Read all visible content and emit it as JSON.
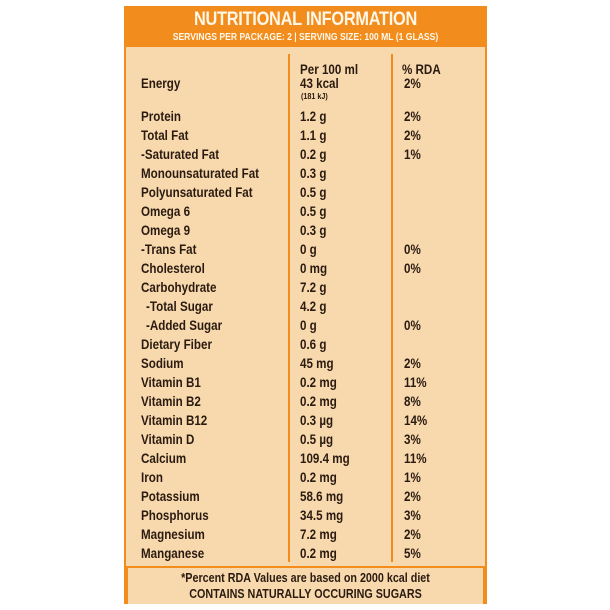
{
  "header": {
    "title": "NUTRITIONAL INFORMATION",
    "subtitle": "SERVINGS PER PACKAGE: 2 | SERVING SIZE: 100 ML (1 GLASS)"
  },
  "columns": {
    "per": "Per 100 ml",
    "rda": "% RDA"
  },
  "rows": [
    {
      "name": "Energy",
      "per": "43 kcal",
      "sub": "(181 kJ)",
      "rda": "2%"
    },
    {
      "name": "Protein",
      "per": "1.2 g",
      "rda": "2%"
    },
    {
      "name": "Total Fat",
      "per": "1.1 g",
      "rda": "2%"
    },
    {
      "name": "-Saturated Fat",
      "per": "0.2 g",
      "rda": "1%"
    },
    {
      "name": "Monounsaturated Fat",
      "per": "0.3 g",
      "rda": ""
    },
    {
      "name": "Polyunsaturated Fat",
      "per": "0.5 g",
      "rda": ""
    },
    {
      "name": "Omega 6",
      "per": "0.5 g",
      "rda": ""
    },
    {
      "name": "Omega 9",
      "per": "0.3 g",
      "rda": ""
    },
    {
      "name": "-Trans Fat",
      "per": "0 g",
      "rda": "0%"
    },
    {
      "name": "Cholesterol",
      "per": "0 mg",
      "rda": "0%"
    },
    {
      "name": "Carbohydrate",
      "per": "7.2 g",
      "rda": ""
    },
    {
      "name": "-Total Sugar",
      "per": "4.2 g",
      "rda": ""
    },
    {
      "name": "-Added Sugar",
      "per": "0 g",
      "rda": "0%"
    },
    {
      "name": "Dietary Fiber",
      "per": "0.6 g",
      "rda": ""
    },
    {
      "name": "Sodium",
      "per": "45 mg",
      "rda": "2%"
    },
    {
      "name": "Vitamin B1",
      "per": "0.2 mg",
      "rda": "11%"
    },
    {
      "name": "Vitamin B2",
      "per": "0.2 mg",
      "rda": "8%"
    },
    {
      "name": "Vitamin B12",
      "per": "0.3 µg",
      "rda": "14%"
    },
    {
      "name": "Vitamin D",
      "per": "0.5 µg",
      "rda": "3%"
    },
    {
      "name": "Calcium",
      "per": "109.4 mg",
      "rda": "11%"
    },
    {
      "name": "Iron",
      "per": "0.2 mg",
      "rda": "1%"
    },
    {
      "name": "Potassium",
      "per": "58.6 mg",
      "rda": "2%"
    },
    {
      "name": "Phosphorus",
      "per": "34.5 mg",
      "rda": "3%"
    },
    {
      "name": "Magnesium",
      "per": "7.2 mg",
      "rda": "2%"
    },
    {
      "name": "Manganese",
      "per": "0.2 mg",
      "rda": "5%"
    }
  ],
  "footer": {
    "note": "*Percent RDA Values are based on 2000 kcal diet",
    "claim": "CONTAINS NATURALLY OCCURING SUGARS"
  },
  "colors": {
    "accent": "#f28c1c",
    "panel": "#f7d9ad",
    "text": "#2a1a10"
  }
}
